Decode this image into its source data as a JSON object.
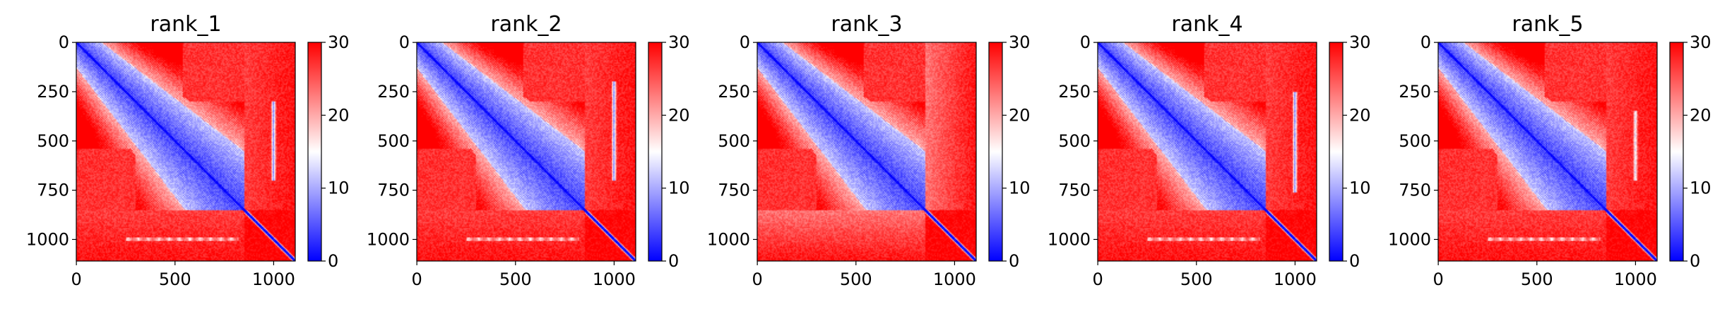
{
  "chart_data": [
    {
      "type": "heatmap",
      "title": "rank_1",
      "n": 1110,
      "block_end": 850,
      "mid_edge": 520,
      "band_x": 1000,
      "band_y": [
        300,
        700
      ],
      "band_strength": 1.0,
      "lower_band_y": 1000,
      "tail_red": 0.45,
      "xticks": [
        "0",
        "500",
        "1000"
      ],
      "yticks": [
        "0",
        "250",
        "500",
        "750",
        "1000"
      ],
      "colorbar": {
        "ticks": [
          "0",
          "10",
          "20",
          "30"
        ],
        "vmin": 0,
        "vmax": 30,
        "cmap": [
          "#0000ff",
          "#ffffff",
          "#ff0000"
        ]
      }
    },
    {
      "type": "heatmap",
      "title": "rank_2",
      "n": 1110,
      "block_end": 850,
      "mid_edge": 520,
      "band_x": 1000,
      "band_y": [
        200,
        700
      ],
      "band_strength": 1.0,
      "lower_band_y": 1000,
      "tail_red": 0.45,
      "xticks": [
        "0",
        "500",
        "1000"
      ],
      "yticks": [
        "0",
        "250",
        "500",
        "750",
        "1000"
      ],
      "colorbar": {
        "ticks": [
          "0",
          "10",
          "20",
          "30"
        ],
        "vmin": 0,
        "vmax": 30,
        "cmap": [
          "#0000ff",
          "#ffffff",
          "#ff0000"
        ]
      }
    },
    {
      "type": "heatmap",
      "title": "rank_3",
      "n": 1110,
      "block_end": 850,
      "mid_edge": 520,
      "band_x": 1000,
      "band_y": [
        300,
        700
      ],
      "band_strength": 0.0,
      "lower_band_y": 1000,
      "tail_red": 1.0,
      "xticks": [
        "0",
        "500",
        "1000"
      ],
      "yticks": [
        "0",
        "250",
        "500",
        "750",
        "1000"
      ],
      "colorbar": {
        "ticks": [
          "0",
          "10",
          "20",
          "30"
        ],
        "vmin": 0,
        "vmax": 30,
        "cmap": [
          "#0000ff",
          "#ffffff",
          "#ff0000"
        ]
      }
    },
    {
      "type": "heatmap",
      "title": "rank_4",
      "n": 1110,
      "block_end": 850,
      "mid_edge": 520,
      "band_x": 1000,
      "band_y": [
        250,
        760
      ],
      "band_strength": 1.0,
      "lower_band_y": 1000,
      "tail_red": 0.45,
      "xticks": [
        "0",
        "500",
        "1000"
      ],
      "yticks": [
        "0",
        "250",
        "500",
        "750",
        "1000"
      ],
      "colorbar": {
        "ticks": [
          "0",
          "10",
          "20",
          "30"
        ],
        "vmin": 0,
        "vmax": 30,
        "cmap": [
          "#0000ff",
          "#ffffff",
          "#ff0000"
        ]
      }
    },
    {
      "type": "heatmap",
      "title": "rank_5",
      "n": 1110,
      "block_end": 850,
      "mid_edge": 520,
      "band_x": 1000,
      "band_y": [
        350,
        700
      ],
      "band_strength": 0.7,
      "lower_band_y": 1000,
      "tail_red": 0.45,
      "xticks": [
        "0",
        "500",
        "1000"
      ],
      "yticks": [
        "0",
        "250",
        "500",
        "750",
        "1000"
      ],
      "colorbar": {
        "ticks": [
          "0",
          "10",
          "20",
          "30"
        ],
        "vmin": 0,
        "vmax": 30,
        "cmap": [
          "#0000ff",
          "#ffffff",
          "#ff0000"
        ]
      }
    }
  ]
}
